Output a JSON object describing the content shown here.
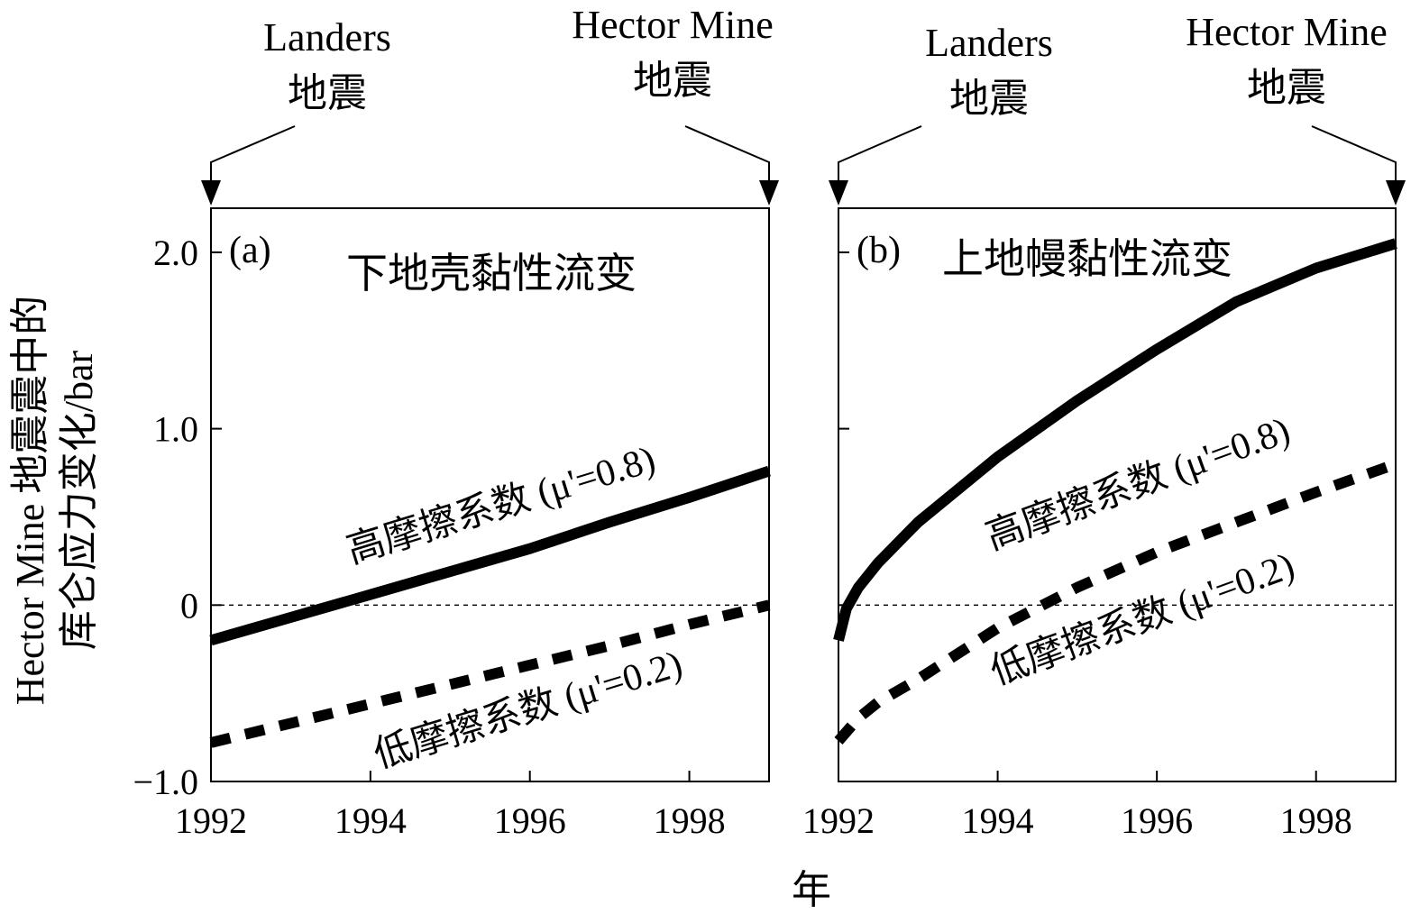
{
  "y_axis_label_line1": "Hector Mine 地震震中的",
  "y_axis_label_line2": "库仑应力变化/bar",
  "x_axis_label": "年",
  "chart_data": [
    {
      "type": "line",
      "panel_tag": "(a)",
      "title": "下地壳黏性流变",
      "xlim": [
        1992,
        1999
      ],
      "ylim": [
        -1.0,
        2.25
      ],
      "x_ticks": [
        1992,
        1994,
        1996,
        1998
      ],
      "y_ticks": [
        -1.0,
        0,
        1.0,
        2.0
      ],
      "y_tick_labels": [
        "−1.0",
        "0",
        "1.0",
        "2.0"
      ],
      "show_y_tick_labels": true,
      "events": [
        {
          "year": 1992,
          "line1": "Landers",
          "line2": "地震"
        },
        {
          "year": 1999,
          "line1": "Hector Mine",
          "line2": "地震"
        }
      ],
      "series": [
        {
          "label": "高摩擦系数 (μ'=0.8)",
          "style": "solid",
          "x": [
            1992,
            1993,
            1994,
            1995,
            1996,
            1997,
            1998,
            1999
          ],
          "y": [
            -0.2,
            -0.07,
            0.06,
            0.19,
            0.32,
            0.47,
            0.61,
            0.76
          ]
        },
        {
          "label": "低摩擦系数 (μ'=0.2)",
          "style": "dashed",
          "x": [
            1992,
            1993,
            1994,
            1995,
            1996,
            1997,
            1998,
            1999
          ],
          "y": [
            -0.78,
            -0.67,
            -0.56,
            -0.45,
            -0.34,
            -0.23,
            -0.11,
            0.0
          ]
        }
      ]
    },
    {
      "type": "line",
      "panel_tag": "(b)",
      "title": "上地幔黏性流变",
      "xlim": [
        1992,
        1999
      ],
      "ylim": [
        -1.0,
        2.25
      ],
      "x_ticks": [
        1992,
        1994,
        1996,
        1998
      ],
      "y_ticks": [
        -1.0,
        0,
        1.0,
        2.0
      ],
      "show_y_tick_labels": false,
      "events": [
        {
          "year": 1992,
          "line1": "Landers",
          "line2": "地震"
        },
        {
          "year": 1999,
          "line1": "Hector Mine",
          "line2": "地震"
        }
      ],
      "series": [
        {
          "label": "高摩擦系数 (μ'=0.8)",
          "style": "solid",
          "x": [
            1992,
            1992.1,
            1992.25,
            1992.5,
            1993,
            1994,
            1995,
            1996,
            1997,
            1998,
            1999
          ],
          "y": [
            -0.2,
            -0.02,
            0.1,
            0.24,
            0.47,
            0.84,
            1.16,
            1.45,
            1.72,
            1.91,
            2.05
          ]
        },
        {
          "label": "低摩擦系数 (μ'=0.2)",
          "style": "dashed",
          "x": [
            1992,
            1992.25,
            1992.5,
            1993,
            1994,
            1995,
            1996,
            1997,
            1998,
            1999
          ],
          "y": [
            -0.77,
            -0.64,
            -0.55,
            -0.42,
            -0.13,
            0.1,
            0.3,
            0.47,
            0.64,
            0.8
          ]
        }
      ]
    }
  ]
}
